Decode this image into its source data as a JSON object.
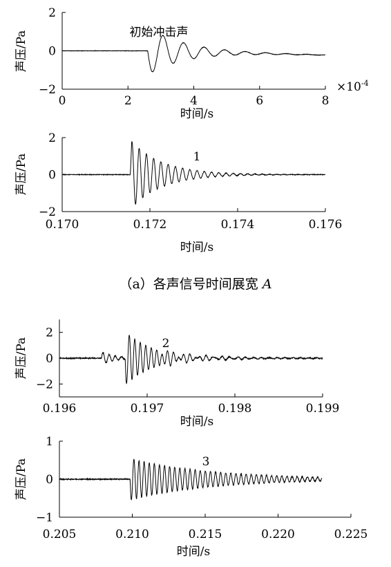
{
  "caption": {
    "prefix": "（a）各声信号时间展宽 ",
    "italic": "A"
  },
  "chart_data": [
    {
      "type": "line",
      "ylabel": "声压/Pa",
      "xlabel": "时间/s",
      "xlim": [
        0,
        8
      ],
      "ylim": [
        -2,
        2
      ],
      "xticks": [
        0,
        2,
        4,
        6,
        8
      ],
      "xtick_labels": [
        "0",
        "2",
        "4",
        "6",
        "8"
      ],
      "yticks": [
        2,
        0,
        -2
      ],
      "ytick_labels": [
        "2",
        "0",
        "−2"
      ],
      "x_multiplier": "×10",
      "x_multiplier_exp": "-4",
      "annotation": "初始冲击声",
      "waveform": {
        "t0": 2.6,
        "peak": -1.2,
        "secondary": 0.35,
        "decay": 1.1,
        "freq": 1.6,
        "baseline_start": 0.0,
        "baseline_end": -0.22,
        "noise": 0.02
      },
      "series": [
        {
          "values_description": "",
          "x": [
            0,
            2.6,
            2.8,
            3.05,
            3.3,
            3.55,
            3.8,
            4.5,
            5.5,
            8
          ],
          "y": [
            0,
            0,
            -1.15,
            0.35,
            -0.45,
            0.05,
            -0.28,
            -0.12,
            -0.2,
            -0.22
          ]
        }
      ]
    },
    {
      "type": "line",
      "ylabel": "声压/Pa",
      "xlabel": "时间/s",
      "xlim": [
        0.17,
        0.176
      ],
      "ylim": [
        -2,
        2
      ],
      "xticks": [
        0.17,
        0.172,
        0.174,
        0.176
      ],
      "xtick_labels": [
        "0.170",
        "0.172",
        "0.174",
        "0.176"
      ],
      "yticks": [
        2,
        0,
        -2
      ],
      "ytick_labels": [
        "2",
        "0",
        "−2"
      ],
      "annotation": "1",
      "waveform": {
        "t0": 0.17155,
        "amp": 1.9,
        "decay": 0.0007,
        "period": 0.000165,
        "noise": 0.03
      },
      "series": [
        {
          "x": [
            0.17,
            0.17155,
            0.1716,
            0.1718,
            0.172,
            0.173,
            0.176
          ],
          "y": [
            0,
            0,
            1.9,
            -1.5,
            1.0,
            0.25,
            0.05
          ]
        }
      ]
    },
    {
      "type": "line",
      "ylabel": "声压/Pa",
      "xlabel": "时间/s",
      "xlim": [
        0.196,
        0.199
      ],
      "ylim": [
        -3,
        3
      ],
      "xticks": [
        0.196,
        0.197,
        0.198,
        0.199
      ],
      "xtick_labels": [
        "0.196",
        "0.197",
        "0.198",
        "0.199"
      ],
      "yticks": [
        2,
        0,
        -2
      ],
      "ytick_labels": [
        "2",
        "0",
        "−2"
      ],
      "annotation": "2",
      "waveform": {
        "t0": 0.19648,
        "pre_amp": 0.5,
        "main_t": 0.19675,
        "amp": 2.1,
        "decay": 0.0003,
        "period": 6.25e-05,
        "noise": 0.08
      },
      "series": [
        {
          "x": [
            0.196,
            0.1965,
            0.1968,
            0.1969,
            0.1972,
            0.1975,
            0.199
          ],
          "y": [
            0,
            0.4,
            -2.2,
            2.0,
            0.4,
            0.2,
            0.05
          ]
        }
      ]
    },
    {
      "type": "line",
      "ylabel": "声压/Pa",
      "xlabel": "时间/s",
      "xlim": [
        0.205,
        0.225
      ],
      "ylim": [
        -1,
        1
      ],
      "xticks": [
        0.205,
        0.21,
        0.215,
        0.22,
        0.225
      ],
      "xtick_labels": [
        "0.205",
        "0.210",
        "0.215",
        "0.220",
        "0.225"
      ],
      "yticks": [
        1,
        0,
        -1
      ],
      "ytick_labels": [
        "1",
        "0",
        "−1"
      ],
      "data_end": 0.223,
      "annotation": "3",
      "waveform": {
        "t0": 0.20985,
        "amp": 0.55,
        "decay": 0.0055,
        "period": 0.00035,
        "noise": 0.025
      },
      "series": [
        {
          "x": [
            0.205,
            0.20985,
            0.2101,
            0.211,
            0.215,
            0.22,
            0.223
          ],
          "y": [
            0,
            0,
            0.55,
            -0.45,
            0.25,
            0.1,
            0.05
          ]
        }
      ]
    }
  ]
}
